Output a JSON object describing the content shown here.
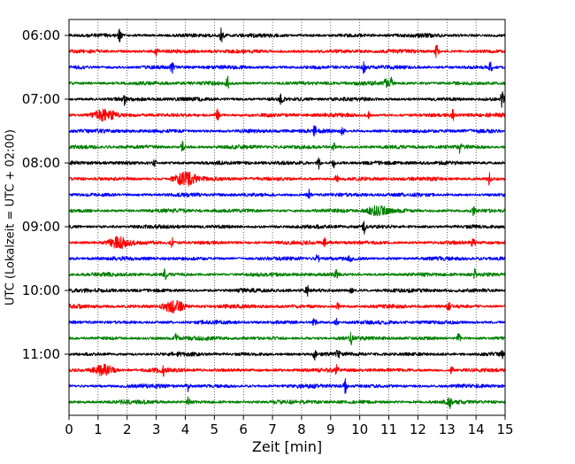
{
  "chart_data": {
    "type": "line",
    "title": "",
    "xlabel": "Zeit  [min]",
    "ylabel": "UTC (Lokalzeit = UTC + 02:00)",
    "xlim": [
      0,
      15
    ],
    "xticks": [
      "0",
      "1",
      "2",
      "3",
      "4",
      "5",
      "6",
      "7",
      "8",
      "9",
      "10",
      "11",
      "12",
      "13",
      "14",
      "15"
    ],
    "yticks": [
      {
        "label": "06:00",
        "trace_index": 0
      },
      {
        "label": "07:00",
        "trace_index": 4
      },
      {
        "label": "08:00",
        "trace_index": 8
      },
      {
        "label": "09:00",
        "trace_index": 12
      },
      {
        "label": "10:00",
        "trace_index": 16
      },
      {
        "label": "11:00",
        "trace_index": 20
      }
    ],
    "grid": "vertical dotted at each minute",
    "color_cycle": [
      "#000000",
      "#ff0000",
      "#0000ff",
      "#008000"
    ],
    "traces": [
      {
        "start": "06:00",
        "color": "#000000",
        "events": [
          {
            "t": 1.75,
            "amp": 0.9
          },
          {
            "t": 5.25,
            "amp": 0.9
          }
        ]
      },
      {
        "start": "06:15",
        "color": "#ff0000",
        "events": [
          {
            "t": 3.0,
            "amp": 0.5
          },
          {
            "t": 12.65,
            "amp": 0.9
          }
        ]
      },
      {
        "start": "06:30",
        "color": "#0000ff",
        "events": [
          {
            "t": 3.55,
            "amp": 0.6
          },
          {
            "t": 10.15,
            "amp": 0.8
          },
          {
            "t": 14.5,
            "amp": 0.6
          }
        ]
      },
      {
        "start": "06:45",
        "color": "#008000",
        "events": [
          {
            "t": 5.45,
            "amp": 0.8
          },
          {
            "t": 10.9,
            "amp": 0.7
          },
          {
            "t": 11.1,
            "amp": 0.7
          }
        ]
      },
      {
        "start": "07:00",
        "color": "#000000",
        "events": [
          {
            "t": 1.9,
            "amp": 0.6
          },
          {
            "t": 7.3,
            "amp": 0.7
          },
          {
            "t": 14.9,
            "amp": 1.0
          }
        ]
      },
      {
        "start": "07:15",
        "color": "#ff0000",
        "events": [
          {
            "t": 1.2,
            "amp": 0.7,
            "blob": true
          },
          {
            "t": 5.1,
            "amp": 0.7
          },
          {
            "t": 10.3,
            "amp": 0.5
          },
          {
            "t": 13.2,
            "amp": 0.6
          }
        ]
      },
      {
        "start": "07:30",
        "color": "#0000ff",
        "events": [
          {
            "t": 8.45,
            "amp": 0.7
          },
          {
            "t": 9.4,
            "amp": 0.6
          }
        ]
      },
      {
        "start": "07:45",
        "color": "#008000",
        "events": [
          {
            "t": 3.9,
            "amp": 0.6
          },
          {
            "t": 9.1,
            "amp": 0.5
          },
          {
            "t": 13.45,
            "amp": 0.6
          }
        ]
      },
      {
        "start": "08:00",
        "color": "#000000",
        "events": [
          {
            "t": 2.95,
            "amp": 0.4
          },
          {
            "t": 8.6,
            "amp": 0.8
          },
          {
            "t": 9.1,
            "amp": 0.5
          }
        ]
      },
      {
        "start": "08:15",
        "color": "#ff0000",
        "events": [
          {
            "t": 4.0,
            "amp": 0.9,
            "blob": true
          },
          {
            "t": 9.2,
            "amp": 0.5
          },
          {
            "t": 14.45,
            "amp": 0.8
          }
        ]
      },
      {
        "start": "08:30",
        "color": "#0000ff",
        "events": [
          {
            "t": 8.25,
            "amp": 0.7
          }
        ]
      },
      {
        "start": "08:45",
        "color": "#008000",
        "events": [
          {
            "t": 10.6,
            "amp": 0.6,
            "blob": true
          },
          {
            "t": 13.9,
            "amp": 0.5
          }
        ]
      },
      {
        "start": "09:00",
        "color": "#000000",
        "events": [
          {
            "t": 10.15,
            "amp": 0.8
          }
        ]
      },
      {
        "start": "09:15",
        "color": "#ff0000",
        "events": [
          {
            "t": 1.7,
            "amp": 0.7,
            "blob": true
          },
          {
            "t": 3.55,
            "amp": 0.5
          },
          {
            "t": 8.8,
            "amp": 0.5
          },
          {
            "t": 13.9,
            "amp": 0.7
          }
        ]
      },
      {
        "start": "09:30",
        "color": "#0000ff",
        "events": [
          {
            "t": 8.55,
            "amp": 0.6
          },
          {
            "t": 9.65,
            "amp": 0.4
          }
        ]
      },
      {
        "start": "09:45",
        "color": "#008000",
        "events": [
          {
            "t": 3.3,
            "amp": 0.6
          },
          {
            "t": 9.2,
            "amp": 0.6
          },
          {
            "t": 13.95,
            "amp": 0.6
          }
        ]
      },
      {
        "start": "10:00",
        "color": "#000000",
        "events": [
          {
            "t": 8.2,
            "amp": 0.6
          },
          {
            "t": 9.7,
            "amp": 0.4
          }
        ]
      },
      {
        "start": "10:15",
        "color": "#ff0000",
        "events": [
          {
            "t": 3.6,
            "amp": 0.8,
            "blob": true
          },
          {
            "t": 9.25,
            "amp": 0.5
          },
          {
            "t": 13.05,
            "amp": 0.6
          }
        ]
      },
      {
        "start": "10:30",
        "color": "#0000ff",
        "events": [
          {
            "t": 8.45,
            "amp": 0.7
          },
          {
            "t": 9.2,
            "amp": 0.4
          }
        ]
      },
      {
        "start": "10:45",
        "color": "#008000",
        "events": [
          {
            "t": 3.7,
            "amp": 0.6
          },
          {
            "t": 9.7,
            "amp": 0.6
          },
          {
            "t": 13.4,
            "amp": 0.6
          }
        ]
      },
      {
        "start": "11:00",
        "color": "#000000",
        "events": [
          {
            "t": 8.45,
            "amp": 0.6
          },
          {
            "t": 9.25,
            "amp": 0.4
          },
          {
            "t": 14.9,
            "amp": 0.5
          }
        ]
      },
      {
        "start": "11:15",
        "color": "#ff0000",
        "events": [
          {
            "t": 1.2,
            "amp": 0.7,
            "blob": true
          },
          {
            "t": 3.25,
            "amp": 0.5
          },
          {
            "t": 9.2,
            "amp": 0.5
          },
          {
            "t": 13.15,
            "amp": 0.6
          }
        ]
      },
      {
        "start": "11:30",
        "color": "#0000ff",
        "events": [
          {
            "t": 4.1,
            "amp": 0.6
          },
          {
            "t": 9.5,
            "amp": 0.8
          }
        ]
      },
      {
        "start": "11:45",
        "color": "#008000",
        "events": [
          {
            "t": 4.1,
            "amp": 0.6
          },
          {
            "t": 13.1,
            "amp": 0.6
          }
        ]
      }
    ]
  }
}
